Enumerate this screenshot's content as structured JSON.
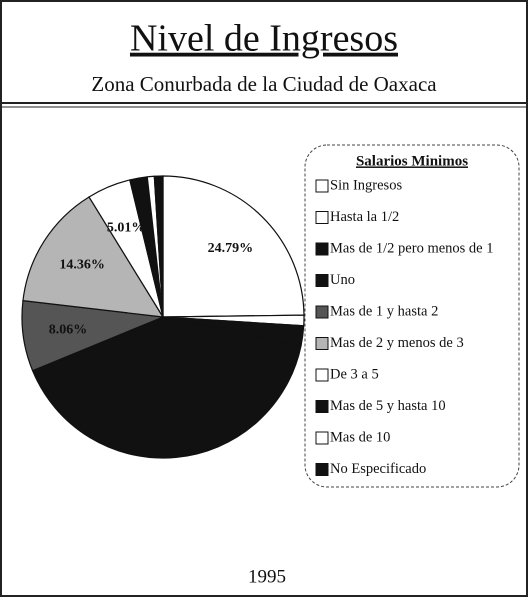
{
  "chart_data": {
    "type": "pie",
    "title": "Nivel de Ingresos",
    "subtitle": "Zona Conurbada de la Ciudad de Oaxaca",
    "legend_title": "Salarios Minimos",
    "footer": "1995",
    "categories": [
      "Sin Ingresos",
      "Hasta la 1/2",
      "Mas de 1/2 pero menos de 1",
      "Uno",
      "Mas de 1 y hasta 2",
      "Mas de 2 y menos de 3",
      "De 3 a 5",
      "Mas de 5 y hasta 10",
      "Mas de 10",
      "No Especificado"
    ],
    "values": [
      24.79,
      1.2,
      2.3,
      40.5,
      8.06,
      14.36,
      5.01,
      2.0,
      0.8,
      0.98
    ],
    "value_labels": [
      "24.79%",
      null,
      null,
      null,
      "8.06%",
      "14.36%",
      "5.01%",
      null,
      null,
      null
    ],
    "colors": [
      "#ffffff",
      "#ffffff",
      "#111111",
      "#111111",
      "#555555",
      "#b5b5b5",
      "#ffffff",
      "#111111",
      "#ffffff",
      "#111111"
    ],
    "legend": "right"
  }
}
